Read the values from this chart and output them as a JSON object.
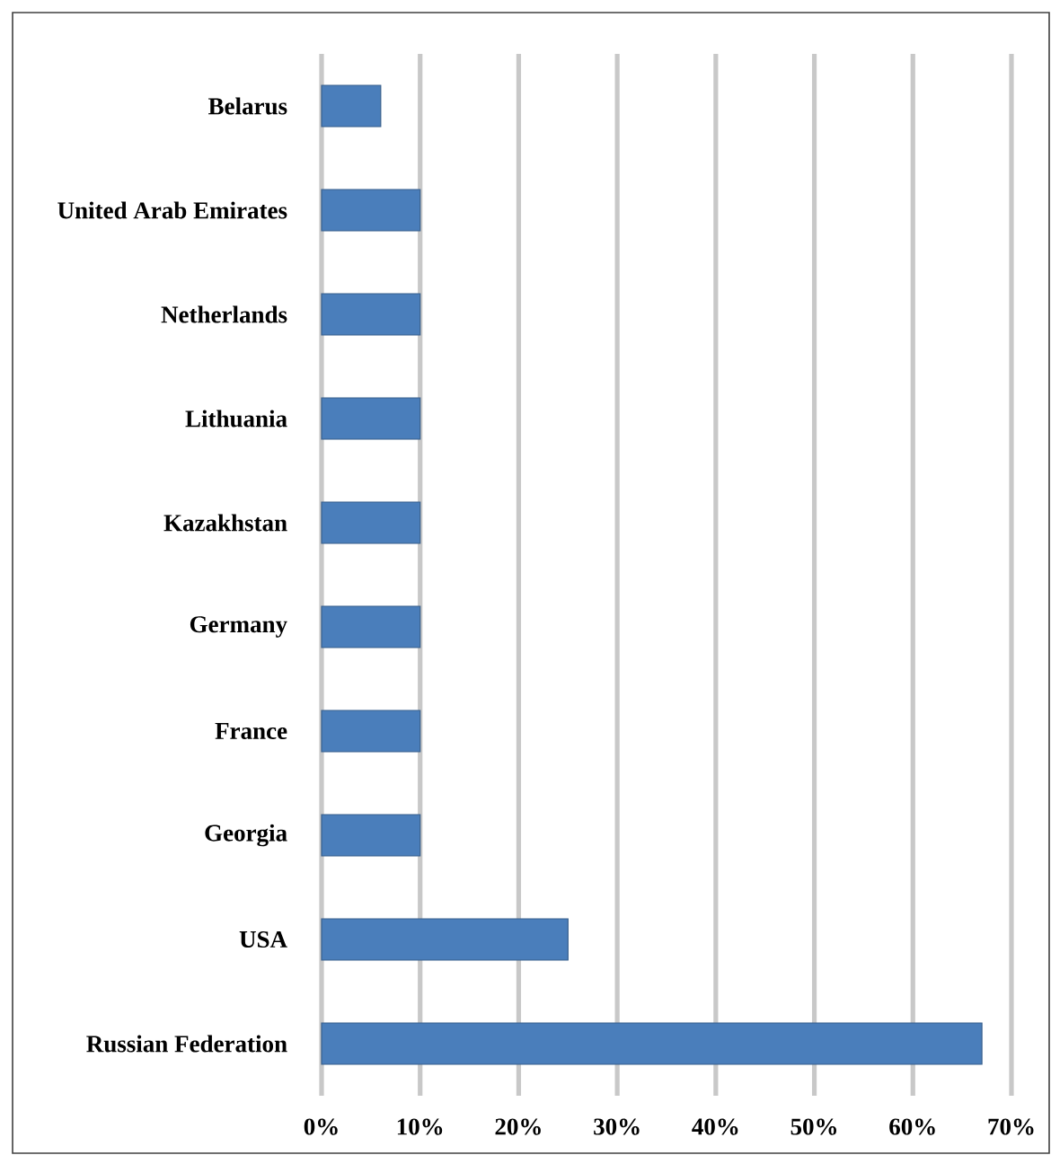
{
  "chart_data": {
    "type": "bar",
    "orientation": "horizontal",
    "categories": [
      "Belarus",
      "United Arab Emirates",
      "Netherlands",
      "Lithuania",
      "Kazakhstan",
      "Germany",
      "France",
      "Georgia",
      "USA",
      "Russian Federation"
    ],
    "values": [
      6,
      10,
      10,
      10,
      10,
      10,
      10,
      10,
      25,
      67
    ],
    "color": "#4a7ebb",
    "xlim": [
      0,
      70
    ],
    "xticks": [
      {
        "value": 0,
        "label": "0%"
      },
      {
        "value": 10,
        "label": "10%"
      },
      {
        "value": 20,
        "label": "20%"
      },
      {
        "value": 30,
        "label": "30%"
      },
      {
        "value": 40,
        "label": "40%"
      },
      {
        "value": 50,
        "label": "50%"
      },
      {
        "value": 60,
        "label": "60%"
      },
      {
        "value": 70,
        "label": "70%"
      }
    ],
    "grid": "x"
  }
}
